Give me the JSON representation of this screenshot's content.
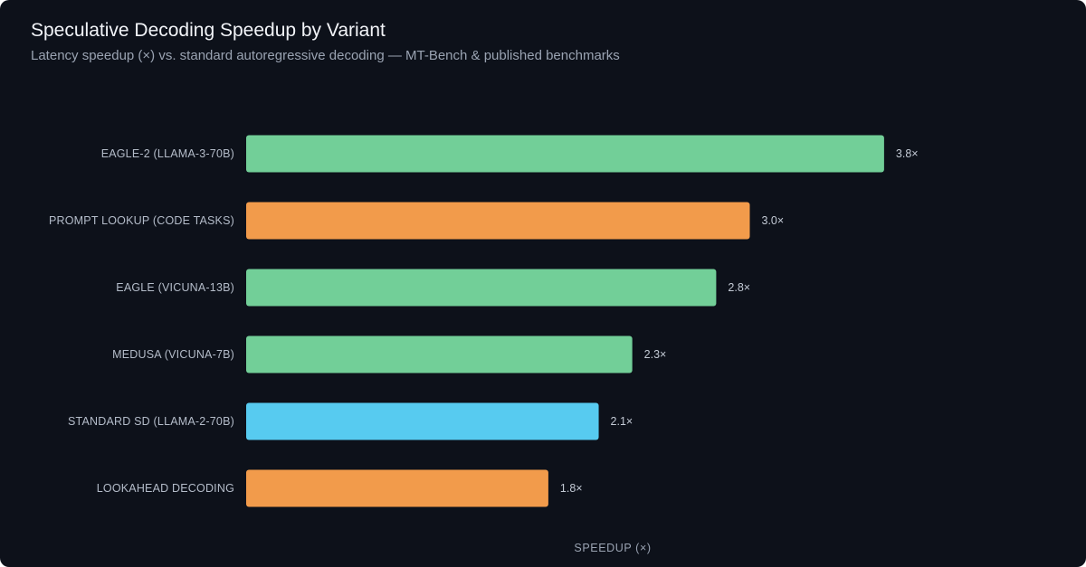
{
  "chart_data": {
    "type": "bar",
    "orientation": "horizontal",
    "title": "Speculative Decoding Speedup by Variant",
    "subtitle": "Latency speedup (×) vs. standard autoregressive decoding — MT-Bench & published benchmarks",
    "xlabel": "SPEEDUP (×)",
    "ylabel": "",
    "xlim": [
      0,
      4.0
    ],
    "grid": false,
    "legend": "none",
    "categories": [
      "EAGLE-2 (LLAMA-3-70B)",
      "PROMPT LOOKUP (CODE TASKS)",
      "EAGLE (VICUNA-13B)",
      "MEDUSA (VICUNA-7B)",
      "STANDARD SD (LLAMA-2-70B)",
      "LOOKAHEAD DECODING"
    ],
    "values": [
      3.8,
      3.0,
      2.8,
      2.3,
      2.1,
      1.8
    ],
    "value_labels": [
      "3.8×",
      "3.0×",
      "2.8×",
      "2.3×",
      "2.1×",
      "1.8×"
    ],
    "bar_colors": [
      "#72cf98",
      "#f29b4b",
      "#72cf98",
      "#72cf98",
      "#57cbf0",
      "#f29b4b"
    ]
  },
  "theme": {
    "background": "#0d111a"
  }
}
